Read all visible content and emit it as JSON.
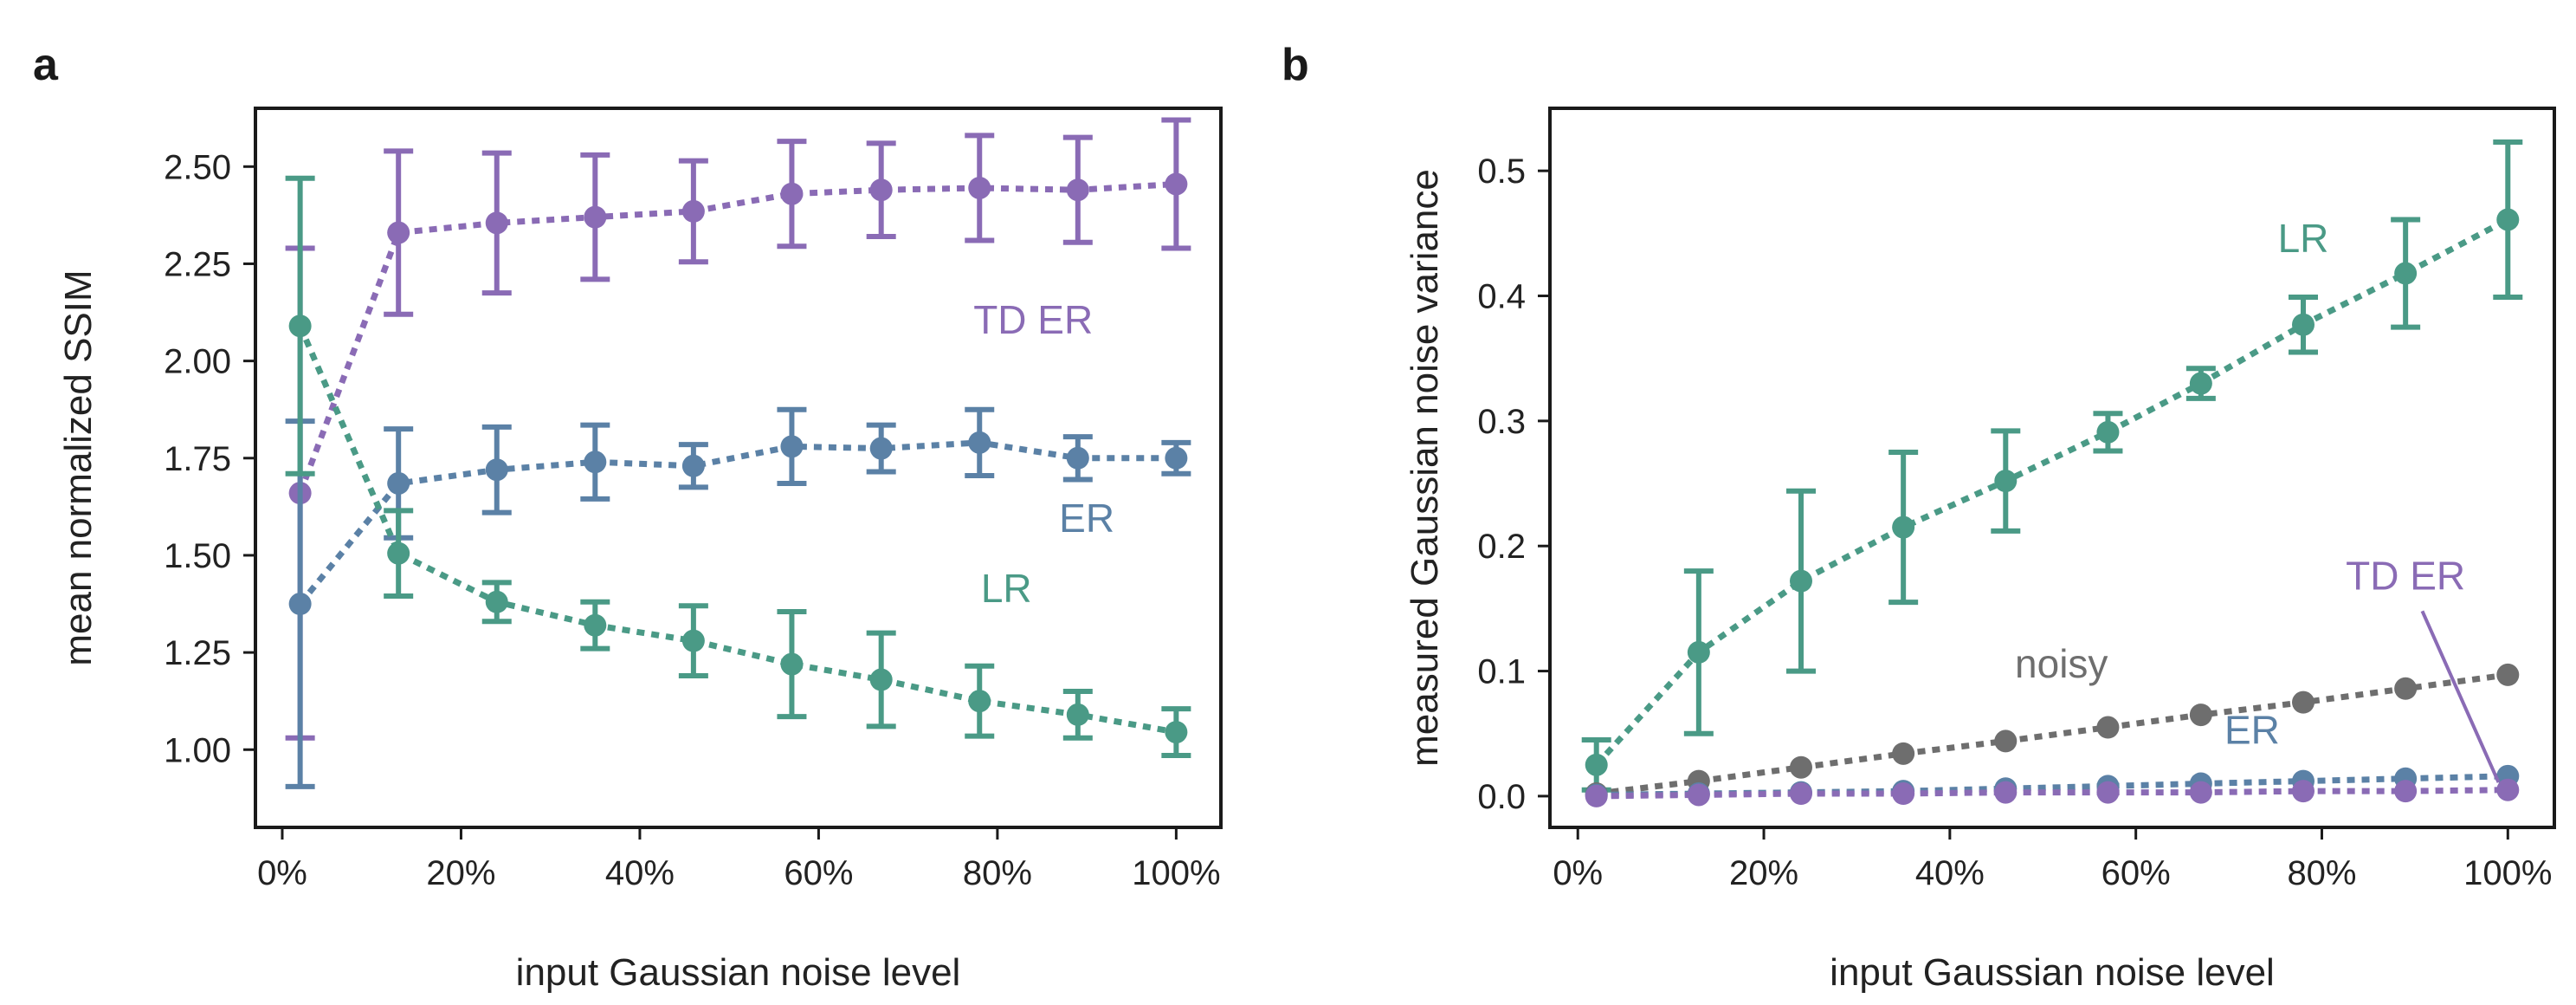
{
  "chart_data": [
    {
      "panel": "a",
      "type": "line",
      "xlabel": "input Gaussian noise level",
      "ylabel": "mean normalized SSIM",
      "xlim": [
        -3,
        105
      ],
      "ylim": [
        0.8,
        2.65
      ],
      "x_ticks": [
        0,
        20,
        40,
        60,
        80,
        100
      ],
      "x_tick_labels": [
        "0%",
        "20%",
        "40%",
        "60%",
        "80%",
        "100%"
      ],
      "y_ticks": [
        1.0,
        1.25,
        1.5,
        1.75,
        2.0,
        2.25,
        2.5
      ],
      "y_tick_labels": [
        "1.00",
        "1.25",
        "1.50",
        "1.75",
        "2.00",
        "2.25",
        "2.50"
      ],
      "x": [
        2,
        13,
        24,
        35,
        46,
        57,
        67,
        78,
        89,
        100
      ],
      "series": [
        {
          "name": "TD ER",
          "color": "#8a6bb5",
          "label_at": [
            84,
            2.07
          ],
          "values": [
            1.66,
            2.33,
            2.355,
            2.37,
            2.385,
            2.43,
            2.44,
            2.445,
            2.44,
            2.455
          ],
          "errors": [
            0.63,
            0.21,
            0.18,
            0.16,
            0.13,
            0.135,
            0.12,
            0.135,
            0.135,
            0.165
          ]
        },
        {
          "name": "ER",
          "color": "#5b81a6",
          "label_at": [
            90,
            1.56
          ],
          "values": [
            1.375,
            1.685,
            1.72,
            1.74,
            1.73,
            1.78,
            1.775,
            1.79,
            1.75,
            1.75
          ],
          "errors": [
            0.47,
            0.14,
            0.11,
            0.095,
            0.055,
            0.095,
            0.06,
            0.085,
            0.055,
            0.04
          ]
        },
        {
          "name": "LR",
          "color": "#4a9a86",
          "label_at": [
            81,
            1.38
          ],
          "values": [
            2.09,
            1.505,
            1.38,
            1.32,
            1.28,
            1.22,
            1.18,
            1.125,
            1.09,
            1.045
          ],
          "errors": [
            0.38,
            0.11,
            0.05,
            0.06,
            0.09,
            0.135,
            0.12,
            0.09,
            0.06,
            0.06
          ]
        }
      ]
    },
    {
      "panel": "b",
      "type": "line",
      "xlabel": "input Gaussian noise level",
      "ylabel": "measured Gaussian noise variance",
      "xlim": [
        -3,
        105
      ],
      "ylim": [
        -0.025,
        0.55
      ],
      "x_ticks": [
        0,
        20,
        40,
        60,
        80,
        100
      ],
      "x_tick_labels": [
        "0%",
        "20%",
        "40%",
        "60%",
        "80%",
        "100%"
      ],
      "y_ticks": [
        0.0,
        0.1,
        0.2,
        0.3,
        0.4,
        0.5
      ],
      "y_tick_labels": [
        "0.0",
        "0.1",
        "0.2",
        "0.3",
        "0.4",
        "0.5"
      ],
      "x": [
        2,
        13,
        24,
        35,
        46,
        57,
        67,
        78,
        89,
        100
      ],
      "series": [
        {
          "name": "LR",
          "color": "#4a9a86",
          "label_at": [
            78,
            0.435
          ],
          "values": [
            0.025,
            0.115,
            0.172,
            0.215,
            0.252,
            0.291,
            0.33,
            0.377,
            0.418,
            0.461
          ],
          "errors": [
            0.02,
            0.065,
            0.072,
            0.06,
            0.04,
            0.015,
            0.012,
            0.022,
            0.043,
            0.062
          ]
        },
        {
          "name": "noisy",
          "color": "#6e6e6e",
          "label_at": [
            52,
            0.095
          ],
          "values": [
            0.002,
            0.012,
            0.023,
            0.034,
            0.044,
            0.055,
            0.065,
            0.075,
            0.086,
            0.097
          ],
          "errors": [
            0,
            0,
            0,
            0,
            0,
            0,
            0,
            0,
            0,
            0
          ]
        },
        {
          "name": "ER",
          "color": "#5b81a6",
          "label_at": [
            72.5,
            0.042
          ],
          "values": [
            0.001,
            0.002,
            0.003,
            0.004,
            0.006,
            0.008,
            0.01,
            0.012,
            0.014,
            0.016
          ],
          "errors": [
            0,
            0,
            0,
            0,
            0,
            0,
            0,
            0,
            0,
            0
          ]
        },
        {
          "name": "TD ER",
          "color": "#8a6bb5",
          "label_at": [
            89,
            0.165
          ],
          "values": [
            0.0,
            0.001,
            0.002,
            0.002,
            0.003,
            0.003,
            0.003,
            0.004,
            0.004,
            0.005
          ],
          "errors": [
            0,
            0,
            0,
            0,
            0,
            0,
            0,
            0,
            0,
            0
          ]
        }
      ],
      "annotation": {
        "series": "TD ER",
        "from": [
          90.8,
          0.148
        ],
        "to": [
          99,
          0.011
        ]
      }
    }
  ],
  "panels": {
    "a_letter": "a",
    "b_letter": "b"
  }
}
